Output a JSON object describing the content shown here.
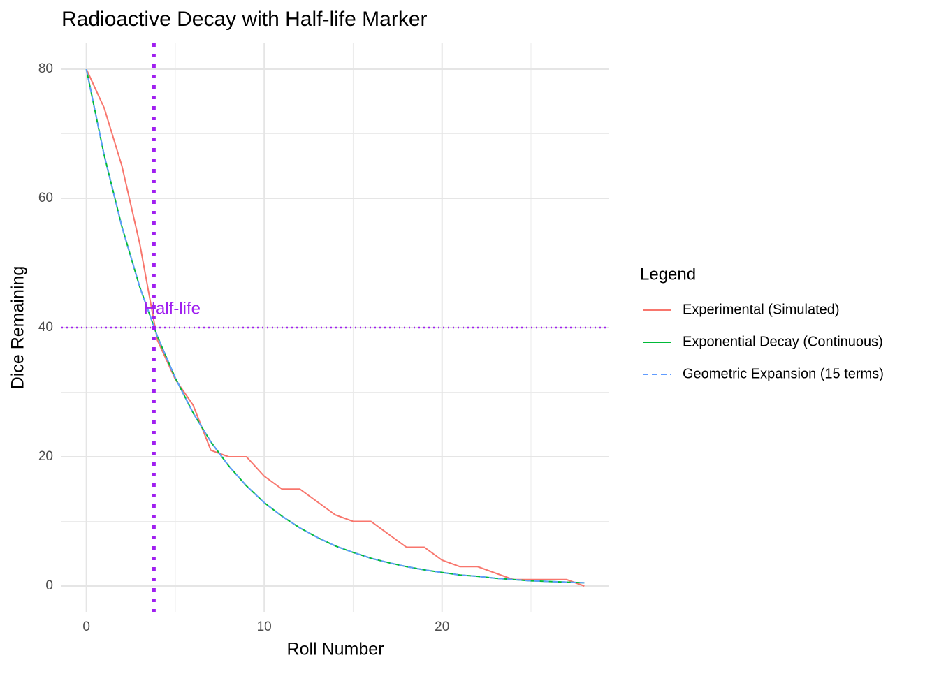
{
  "chart_data": {
    "type": "line",
    "title": "Radioactive Decay with Half-life Marker",
    "x_label": "Roll Number",
    "y_label": "Dice Remaining",
    "legend_title": "Legend",
    "legend_position": "right",
    "x": [
      0,
      1,
      2,
      3,
      4,
      5,
      6,
      7,
      8,
      9,
      10,
      11,
      12,
      13,
      14,
      15,
      16,
      17,
      18,
      19,
      20,
      21,
      22,
      23,
      24,
      25,
      26,
      27,
      28
    ],
    "series": [
      {
        "name": "Experimental (Simulated)",
        "color": "#f8766d",
        "dash": false,
        "values": [
          80,
          74,
          65,
          53,
          38,
          32,
          28,
          21,
          20,
          20,
          17,
          15,
          15,
          13,
          11,
          10,
          10,
          8,
          6,
          6,
          4,
          3,
          3,
          2,
          1,
          1,
          1,
          1,
          0
        ]
      },
      {
        "name": "Exponential Decay (Continuous)",
        "color": "#00ba38",
        "dash": false,
        "values": [
          80,
          66.7,
          55.6,
          46.3,
          38.6,
          32.2,
          26.8,
          22.3,
          18.6,
          15.5,
          12.9,
          10.8,
          9.0,
          7.5,
          6.2,
          5.2,
          4.3,
          3.6,
          3.0,
          2.5,
          2.1,
          1.7,
          1.5,
          1.2,
          1.0,
          0.8,
          0.7,
          0.6,
          0.5
        ]
      },
      {
        "name": "Geometric Expansion (15 terms)",
        "color": "#619cff",
        "dash": true,
        "values": [
          80,
          66.7,
          55.6,
          46.3,
          38.6,
          32.2,
          26.8,
          22.3,
          18.6,
          15.5,
          12.9,
          10.8,
          9.0,
          7.5,
          6.2,
          5.2,
          4.3,
          3.6,
          3.0,
          2.5,
          2.1,
          1.7,
          1.5,
          1.2,
          1.0,
          0.8,
          0.7,
          0.6,
          0.5
        ]
      }
    ],
    "xlim": [
      -1.4,
      29.4
    ],
    "ylim": [
      -4,
      84
    ],
    "xticks": [
      0,
      10,
      20
    ],
    "yticks": [
      0,
      20,
      40,
      60,
      80
    ],
    "minor_xticks": [
      5,
      15,
      25
    ],
    "minor_yticks": [
      10,
      30,
      50,
      70
    ],
    "grid": true,
    "half_life": {
      "x": 3.8,
      "y": 40,
      "label": "Half-life",
      "color": "#a020f0"
    }
  }
}
